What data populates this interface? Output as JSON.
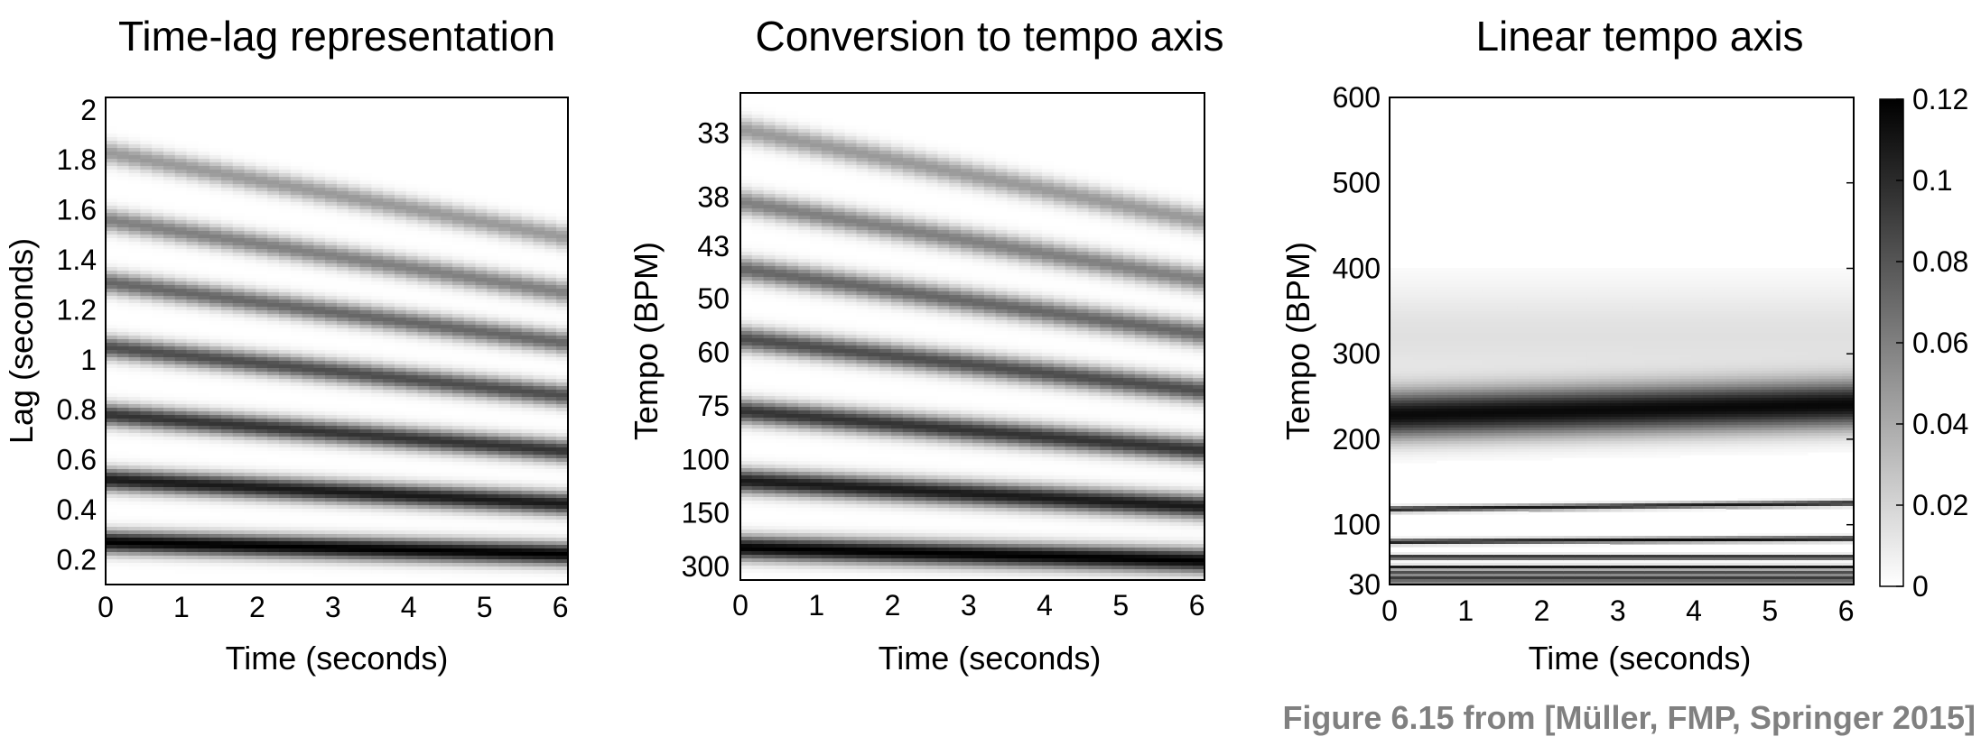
{
  "caption": "Figure 6.15 from [Müller, FMP, Springer 2015]",
  "chart_data": [
    {
      "type": "heatmap",
      "title": "Time-lag representation",
      "xlabel": "Time (seconds)",
      "ylabel": "Lag (seconds)",
      "x_ticks": [
        "0",
        "1",
        "2",
        "3",
        "4",
        "5",
        "6"
      ],
      "y_ticks": [
        "2",
        "1.8",
        "1.6",
        "1.4",
        "1.2",
        "1",
        "0.8",
        "0.6",
        "0.4",
        "0.2"
      ],
      "xlim": [
        0,
        6.1
      ],
      "ylim": [
        0.1,
        2.05
      ],
      "colormap": "gray_r",
      "bands_note": "dark bands at multiples of the beat lag (~0.26 s), drifting slightly down over time",
      "band_centers_at_t0": [
        0.27,
        0.52,
        0.78,
        1.05,
        1.31,
        1.56,
        1.83
      ],
      "band_slope_per_second": -0.008
    },
    {
      "type": "heatmap",
      "title": "Conversion to tempo axis",
      "xlabel": "Time (seconds)",
      "ylabel": "Tempo (BPM)",
      "x_ticks": [
        "0",
        "1",
        "2",
        "3",
        "4",
        "5",
        "6"
      ],
      "y_ticks": [
        "33",
        "38",
        "43",
        "50",
        "60",
        "75",
        "100",
        "150",
        "300"
      ],
      "xlim": [
        0,
        6.1
      ],
      "colormap": "gray_r"
    },
    {
      "type": "heatmap",
      "title": "Linear tempo axis",
      "xlabel": "Time (seconds)",
      "ylabel": "Tempo (BPM)",
      "x_ticks": [
        "0",
        "1",
        "2",
        "3",
        "4",
        "5",
        "6"
      ],
      "y_ticks": [
        "600",
        "500",
        "400",
        "300",
        "200",
        "100",
        "30"
      ],
      "xlim": [
        0,
        6.1
      ],
      "ylim": [
        30,
        600
      ],
      "colormap": "gray_r",
      "colorbar": {
        "ticks": [
          "0.12",
          "0.1",
          "0.08",
          "0.06",
          "0.04",
          "0.02",
          "0"
        ],
        "range": [
          0,
          0.12
        ]
      }
    }
  ]
}
